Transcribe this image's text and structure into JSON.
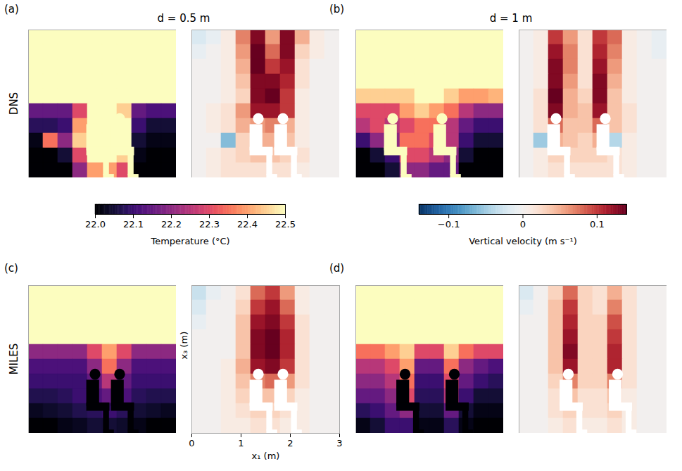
{
  "chart_data": {
    "type": "heatmap",
    "column_titles": [
      "d = 0.5 m",
      "d = 1 m"
    ],
    "row_labels": [
      "DNS",
      "MILES"
    ],
    "xlabel": "x₁ (m)",
    "ylabel": "x₃ (m)",
    "xlim": [
      0,
      3
    ],
    "ylim": [
      0,
      3
    ],
    "xticks": [
      0,
      1,
      2,
      3
    ],
    "tick_labels": "x",
    "x1_edges": [
      0,
      0.3,
      0.6,
      0.9,
      1.2,
      1.5,
      1.8,
      2.1,
      2.4,
      2.7,
      3
    ],
    "x3_edges": [
      3,
      2.7,
      2.4,
      2.1,
      1.8,
      1.5,
      1.2,
      0.9,
      0.6,
      0.3,
      0
    ],
    "colorbars": [
      {
        "label": "Temperature (°C)",
        "range": [
          22.0,
          22.5
        ],
        "ticks": [
          {
            "value": 22,
            "label": "22.0"
          },
          22.1,
          22.2,
          22.3,
          22.4,
          22.5
        ]
      },
      {
        "label": "Vertical velocity (m s⁻¹)",
        "range": [
          -0.14,
          0.14
        ],
        "ticks": [
          {
            "value": -0.1,
            "label": "−0.1"
          },
          0,
          0.1
        ]
      }
    ],
    "panels": [
      {
        "letter": "(a)",
        "occupants_x1": [
          1.3,
          1.8
        ],
        "temperature": [
          [
            22.5,
            22.5,
            22.5,
            22.5,
            22.5,
            22.5,
            22.5,
            22.5,
            22.5,
            22.5
          ],
          [
            22.5,
            22.5,
            22.5,
            22.5,
            22.5,
            22.5,
            22.5,
            22.5,
            22.5,
            22.5
          ],
          [
            22.5,
            22.5,
            22.5,
            22.5,
            22.5,
            22.5,
            22.5,
            22.5,
            22.5,
            22.5
          ],
          [
            22.5,
            22.5,
            22.5,
            22.5,
            22.5,
            22.5,
            22.5,
            22.5,
            22.5,
            22.5
          ],
          [
            22.5,
            22.5,
            22.5,
            22.5,
            22.5,
            22.5,
            22.5,
            22.5,
            22.5,
            22.5
          ],
          [
            22.15,
            22.15,
            22.15,
            22.3,
            22.5,
            22.5,
            22.45,
            22.15,
            22.12,
            22.12
          ],
          [
            22.08,
            22.08,
            22.1,
            22.4,
            22.5,
            22.5,
            22.5,
            22.1,
            22.05,
            22.05
          ],
          [
            22.02,
            22.35,
            22.2,
            22.45,
            22.5,
            22.5,
            22.5,
            22.05,
            22.02,
            22.02
          ],
          [
            22.0,
            22.0,
            22.05,
            22.3,
            22.5,
            22.5,
            22.45,
            22.02,
            22.0,
            22.0
          ],
          [
            22.0,
            22.0,
            22.0,
            22.2,
            22.4,
            22.4,
            22.3,
            22.0,
            22.0,
            22.0
          ]
        ],
        "vertical_velocity": [
          [
            -0.02,
            -0.01,
            0.01,
            0.07,
            0.13,
            0.06,
            0.13,
            0.05,
            0.01,
            0
          ],
          [
            -0.01,
            0,
            0.01,
            0.06,
            0.14,
            0.08,
            0.13,
            0.03,
            0.01,
            0
          ],
          [
            0,
            0,
            0.01,
            0.05,
            0.14,
            0.1,
            0.12,
            0.02,
            0,
            0
          ],
          [
            0,
            0,
            0.01,
            0.04,
            0.13,
            0.13,
            0.11,
            0.02,
            0,
            0
          ],
          [
            0,
            0,
            0.01,
            0.03,
            0.13,
            0.14,
            0.1,
            0.01,
            0,
            0
          ],
          [
            0,
            0.01,
            0.02,
            0.06,
            0.12,
            0.12,
            0.1,
            0.01,
            0,
            0
          ],
          [
            0,
            0.01,
            0.02,
            0.05,
            0.06,
            0.07,
            0.05,
            0.01,
            0,
            0
          ],
          [
            0,
            0,
            -0.06,
            0.03,
            0.05,
            0.05,
            0.04,
            0.01,
            0,
            0
          ],
          [
            0,
            0.01,
            0.02,
            0.03,
            0.04,
            0.04,
            0.03,
            0.02,
            0,
            0
          ],
          [
            0,
            0.01,
            0.02,
            0.02,
            0.02,
            0.02,
            0.02,
            0.01,
            0,
            0
          ]
        ]
      },
      {
        "letter": "(b)",
        "occupants_x1": [
          0.7,
          1.7
        ],
        "temperature": [
          [
            22.5,
            22.5,
            22.5,
            22.5,
            22.5,
            22.5,
            22.5,
            22.5,
            22.5,
            22.5
          ],
          [
            22.5,
            22.5,
            22.5,
            22.5,
            22.5,
            22.5,
            22.5,
            22.5,
            22.5,
            22.5
          ],
          [
            22.5,
            22.5,
            22.5,
            22.5,
            22.5,
            22.5,
            22.5,
            22.5,
            22.5,
            22.5
          ],
          [
            22.5,
            22.5,
            22.5,
            22.5,
            22.5,
            22.5,
            22.5,
            22.5,
            22.5,
            22.5
          ],
          [
            22.45,
            22.45,
            22.45,
            22.45,
            22.5,
            22.5,
            22.45,
            22.4,
            22.4,
            22.42
          ],
          [
            22.3,
            22.3,
            22.3,
            22.4,
            22.45,
            22.4,
            22.35,
            22.25,
            22.2,
            22.2
          ],
          [
            22.25,
            22.3,
            22.25,
            22.3,
            22.35,
            22.35,
            22.25,
            22.15,
            22.1,
            22.1
          ],
          [
            22.1,
            22.2,
            22.2,
            22.35,
            22.35,
            22.3,
            22.25,
            22.1,
            22.05,
            22.05
          ],
          [
            22.0,
            22.05,
            22.1,
            22.3,
            22.3,
            22.25,
            22.2,
            22.05,
            22.0,
            22.0
          ],
          [
            22.0,
            22.0,
            22.05,
            22.2,
            22.2,
            22.15,
            22.15,
            22.0,
            22.0,
            22.0
          ]
        ],
        "vertical_velocity": [
          [
            0,
            0.01,
            0.1,
            0.06,
            0.02,
            0.1,
            0.08,
            0.01,
            0,
            -0.01
          ],
          [
            0,
            0.01,
            0.12,
            0.07,
            0.02,
            0.11,
            0.07,
            0.01,
            0,
            -0.01
          ],
          [
            0,
            0.01,
            0.13,
            0.07,
            0.02,
            0.12,
            0.06,
            0.01,
            0,
            0
          ],
          [
            0,
            0.01,
            0.13,
            0.06,
            0.02,
            0.13,
            0.05,
            0.01,
            0,
            0
          ],
          [
            0,
            0.02,
            0.14,
            0.05,
            0.03,
            0.13,
            0.04,
            0.01,
            0,
            0
          ],
          [
            0,
            0.02,
            0.13,
            0.05,
            0.04,
            0.12,
            0.04,
            0.02,
            0,
            0
          ],
          [
            0,
            0.02,
            0.08,
            0.04,
            0.04,
            0.08,
            0.04,
            0.02,
            0,
            0
          ],
          [
            0,
            -0.05,
            0.05,
            0.04,
            0.03,
            0.05,
            -0.04,
            0.01,
            0,
            0
          ],
          [
            0,
            0.01,
            0.03,
            0.03,
            0.03,
            0.03,
            0.02,
            0.01,
            0,
            0
          ],
          [
            0,
            0.01,
            0.02,
            0.02,
            0.02,
            0.02,
            0.02,
            0.01,
            0,
            0
          ]
        ]
      },
      {
        "letter": "(c)",
        "occupants_x1": [
          1.3,
          1.8
        ],
        "temperature": [
          [
            22.5,
            22.5,
            22.5,
            22.5,
            22.5,
            22.5,
            22.5,
            22.5,
            22.5,
            22.5
          ],
          [
            22.5,
            22.5,
            22.5,
            22.5,
            22.5,
            22.5,
            22.5,
            22.5,
            22.5,
            22.5
          ],
          [
            22.5,
            22.5,
            22.5,
            22.5,
            22.5,
            22.5,
            22.5,
            22.5,
            22.5,
            22.5
          ],
          [
            22.5,
            22.5,
            22.5,
            22.5,
            22.5,
            22.5,
            22.5,
            22.5,
            22.5,
            22.5
          ],
          [
            22.2,
            22.2,
            22.2,
            22.2,
            22.3,
            22.4,
            22.3,
            22.2,
            22.2,
            22.2
          ],
          [
            22.12,
            22.12,
            22.12,
            22.12,
            22.2,
            22.35,
            22.2,
            22.12,
            22.12,
            22.12
          ],
          [
            22.1,
            22.1,
            22.1,
            22.1,
            22.15,
            22.25,
            22.15,
            22.1,
            22.1,
            22.1
          ],
          [
            22.07,
            22.07,
            22.08,
            22.1,
            22.12,
            22.15,
            22.12,
            22.08,
            22.07,
            22.07
          ],
          [
            22.03,
            22.04,
            22.05,
            22.07,
            22.08,
            22.1,
            22.08,
            22.05,
            22.04,
            22.03
          ],
          [
            22.0,
            22.0,
            22.02,
            22.03,
            22.05,
            22.05,
            22.04,
            22.02,
            22.0,
            22.0
          ]
        ],
        "vertical_velocity": [
          [
            -0.03,
            -0.01,
            0,
            0.02,
            0.08,
            0.1,
            0.06,
            0.01,
            0,
            0
          ],
          [
            -0.02,
            0,
            0,
            0.03,
            0.1,
            0.12,
            0.08,
            0.01,
            0,
            0
          ],
          [
            -0.01,
            0,
            0,
            0.04,
            0.12,
            0.13,
            0.1,
            0.02,
            0,
            0
          ],
          [
            0,
            0,
            0,
            0.04,
            0.13,
            0.14,
            0.11,
            0.02,
            0,
            0
          ],
          [
            0,
            0,
            0,
            0.04,
            0.13,
            0.14,
            0.11,
            0.02,
            0,
            0
          ],
          [
            0,
            0,
            0.01,
            0.05,
            0.12,
            0.13,
            0.1,
            0.02,
            0,
            0
          ],
          [
            0,
            0,
            0.01,
            0.04,
            0.07,
            0.08,
            0.06,
            0.02,
            0,
            0
          ],
          [
            0,
            0,
            0.01,
            0.03,
            0.04,
            0.04,
            0.03,
            0.01,
            0,
            0
          ],
          [
            0,
            0,
            0.01,
            0.02,
            0.03,
            0.03,
            0.02,
            0.01,
            0,
            0
          ],
          [
            0,
            0,
            0.01,
            0.01,
            0.02,
            0.02,
            0.01,
            0.01,
            0,
            0
          ]
        ]
      },
      {
        "letter": "(d)",
        "occupants_x1": [
          0.95,
          1.95
        ],
        "temperature": [
          [
            22.5,
            22.5,
            22.5,
            22.5,
            22.5,
            22.5,
            22.5,
            22.5,
            22.5,
            22.5
          ],
          [
            22.5,
            22.5,
            22.5,
            22.5,
            22.5,
            22.5,
            22.5,
            22.5,
            22.5,
            22.5
          ],
          [
            22.5,
            22.5,
            22.5,
            22.5,
            22.5,
            22.5,
            22.5,
            22.5,
            22.5,
            22.5
          ],
          [
            22.5,
            22.5,
            22.5,
            22.5,
            22.5,
            22.5,
            22.5,
            22.5,
            22.5,
            22.5
          ],
          [
            22.35,
            22.35,
            22.4,
            22.45,
            22.3,
            22.3,
            22.45,
            22.35,
            22.3,
            22.3
          ],
          [
            22.25,
            22.25,
            22.3,
            22.4,
            22.15,
            22.15,
            22.35,
            22.2,
            22.15,
            22.12
          ],
          [
            22.2,
            22.2,
            22.25,
            22.35,
            22.1,
            22.1,
            22.3,
            22.15,
            22.1,
            22.08
          ],
          [
            22.15,
            22.15,
            22.2,
            22.3,
            22.08,
            22.08,
            22.25,
            22.1,
            22.05,
            22.05
          ],
          [
            22.08,
            22.1,
            22.15,
            22.2,
            22.05,
            22.05,
            22.15,
            22.05,
            22.02,
            22.02
          ],
          [
            22.02,
            22.05,
            22.1,
            22.1,
            22.02,
            22.02,
            22.08,
            22.02,
            22.0,
            22.0
          ]
        ],
        "vertical_velocity": [
          [
            -0.02,
            0,
            0.03,
            0.08,
            0.03,
            0.02,
            0.05,
            0.02,
            0,
            0
          ],
          [
            -0.01,
            0,
            0.04,
            0.1,
            0.03,
            0.02,
            0.07,
            0.02,
            0,
            0
          ],
          [
            0,
            0,
            0.04,
            0.11,
            0.03,
            0.03,
            0.09,
            0.02,
            0,
            0
          ],
          [
            0,
            0,
            0.04,
            0.12,
            0.03,
            0.03,
            0.1,
            0.02,
            0,
            0
          ],
          [
            0,
            0,
            0.04,
            0.13,
            0.03,
            0.03,
            0.11,
            0.02,
            0,
            0
          ],
          [
            0,
            0,
            0.04,
            0.12,
            0.03,
            0.03,
            0.11,
            0.02,
            0,
            0
          ],
          [
            0,
            0,
            0.03,
            0.07,
            0.03,
            0.03,
            0.07,
            0.02,
            0,
            0
          ],
          [
            0,
            0,
            0.02,
            0.04,
            0.02,
            0.02,
            0.04,
            0.01,
            0,
            0
          ],
          [
            0,
            0,
            0.02,
            0.03,
            0.02,
            0.02,
            0.03,
            0.01,
            0,
            0
          ],
          [
            0,
            0,
            0.01,
            0.02,
            0.01,
            0.01,
            0.02,
            0.01,
            0,
            0
          ]
        ]
      }
    ]
  }
}
